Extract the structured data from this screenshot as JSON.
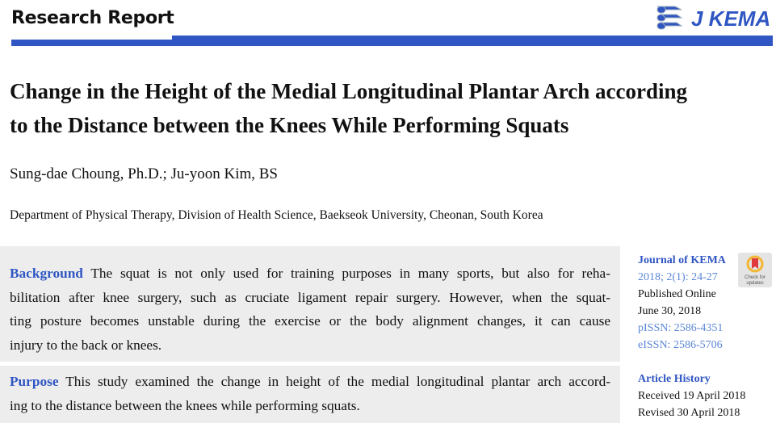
{
  "header": {
    "section": "Research Report",
    "logo_text": "J KEMA",
    "accent": "#2f56c3"
  },
  "article": {
    "title_lines": [
      "Change in the Height of the Medial Longitudinal Plantar Arch according",
      "to the Distance between the Knees While Performing Squats"
    ],
    "authors": "Sung-dae Choung, Ph.D.; Ju-yoon Kim, BS",
    "affiliation": "Department of Physical Therapy, Division of Health Science, Baekseok University, Cheonan, South Korea"
  },
  "abstract": {
    "background": {
      "label": "Background",
      "lines": [
        "The squat is not only used for training purposes in many sports, but also for reha-",
        "bilitation after knee surgery, such as cruciate ligament repair surgery. However, when the squat-",
        "ting posture becomes unstable during the exercise or the body alignment changes, it can cause",
        "injury to the back or knees."
      ]
    },
    "purpose": {
      "label": "Purpose",
      "lines": [
        "This study examined the change in height of the medial longitudinal plantar arch accord-",
        "ing to the distance between the knees while performing squats."
      ]
    }
  },
  "sidebar": {
    "journal": "Journal of KEMA",
    "citation": "2018; 2(1): 24-27",
    "published_label": "Published Online",
    "published_date": "June 30, 2018",
    "pissn": "pISSN: 2586-4351",
    "eissn": "eISSN: 2586-5706",
    "history_label": "Article History",
    "received": "Received 19 April 2018",
    "revised": "Revised 30 April 2018",
    "check_badge": "Check for updates"
  }
}
